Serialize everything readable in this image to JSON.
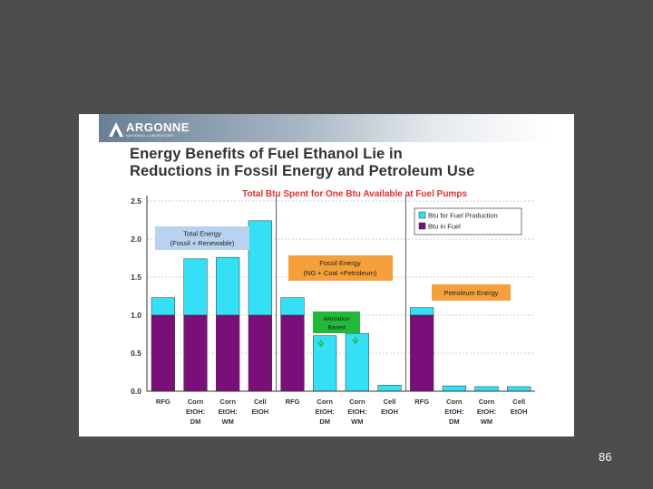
{
  "slide": {
    "logo_name": "ARGONNE",
    "logo_sub": "NATIONAL LABORATORY",
    "title_line_1": "Energy Benefits of Fuel Ethanol Lie in",
    "title_line_2": "Reductions in Fossil Energy and Petroleum Use",
    "page_number": "86"
  },
  "colors": {
    "background": "#4d4d4d",
    "fuel_production": "#33e0f5",
    "fuel": "#7a0f7a",
    "annotation_orange": "#f5a03a",
    "annotation_green": "#22b83a",
    "annotation_blue": "#b7d3f0",
    "title_red": "#e03030"
  },
  "chart_data": {
    "type": "bar",
    "stacked": true,
    "title": "Total Btu Spent for One Btu Available at Fuel Pumps",
    "categories": [
      "RFG",
      "Corn EtOH: DM",
      "Corn EtOH: WM",
      "Cell EtOH",
      "RFG",
      "Corn EtOH: DM",
      "Corn EtOH: WM",
      "Cell EtOH",
      "RFG",
      "Corn EtOH: DM",
      "Corn EtOH: WM",
      "Cell EtOH"
    ],
    "category_lines": [
      [
        "RFG"
      ],
      [
        "Corn",
        "EtOH:",
        "DM"
      ],
      [
        "Corn",
        "EtOH:",
        "WM"
      ],
      [
        "Cell",
        "EtOH"
      ],
      [
        "RFG"
      ],
      [
        "Corn",
        "EtOH:",
        "DM"
      ],
      [
        "Corn",
        "EtOH:",
        "WM"
      ],
      [
        "Cell",
        "EtOH"
      ],
      [
        "RFG"
      ],
      [
        "Corn",
        "EtOH:",
        "DM"
      ],
      [
        "Corn",
        "EtOH:",
        "WM"
      ],
      [
        "Cell",
        "EtOH"
      ]
    ],
    "series": [
      {
        "name": "Btu in Fuel",
        "values": [
          1.0,
          1.0,
          1.0,
          1.0,
          1.0,
          0,
          0,
          0,
          1.0,
          0,
          0,
          0
        ]
      },
      {
        "name": "Btu for Fuel Production",
        "values": [
          0.23,
          0.74,
          0.76,
          1.24,
          0.23,
          0.73,
          0.76,
          0.08,
          0.1,
          0.07,
          0.06,
          0.06
        ]
      }
    ],
    "ylim": [
      0,
      2.5
    ],
    "yticks": [
      "0.0",
      "0.5",
      "1.0",
      "1.5",
      "2.0",
      "2.5"
    ],
    "grid": true,
    "group_separators_after": [
      3,
      7
    ],
    "legend_position": "top-right",
    "annotations": [
      {
        "text_lines": [
          "Total Energy",
          "(Fossil + Renewable)"
        ],
        "style": "blue"
      },
      {
        "text_lines": [
          "Fossil Energy",
          "(NG + Coal +Petroleum)"
        ],
        "style": "orange"
      },
      {
        "text_lines": [
          "Allocation",
          "Based"
        ],
        "style": "green"
      },
      {
        "text_lines": [
          "Petroleum Energy"
        ],
        "style": "orange"
      }
    ]
  }
}
